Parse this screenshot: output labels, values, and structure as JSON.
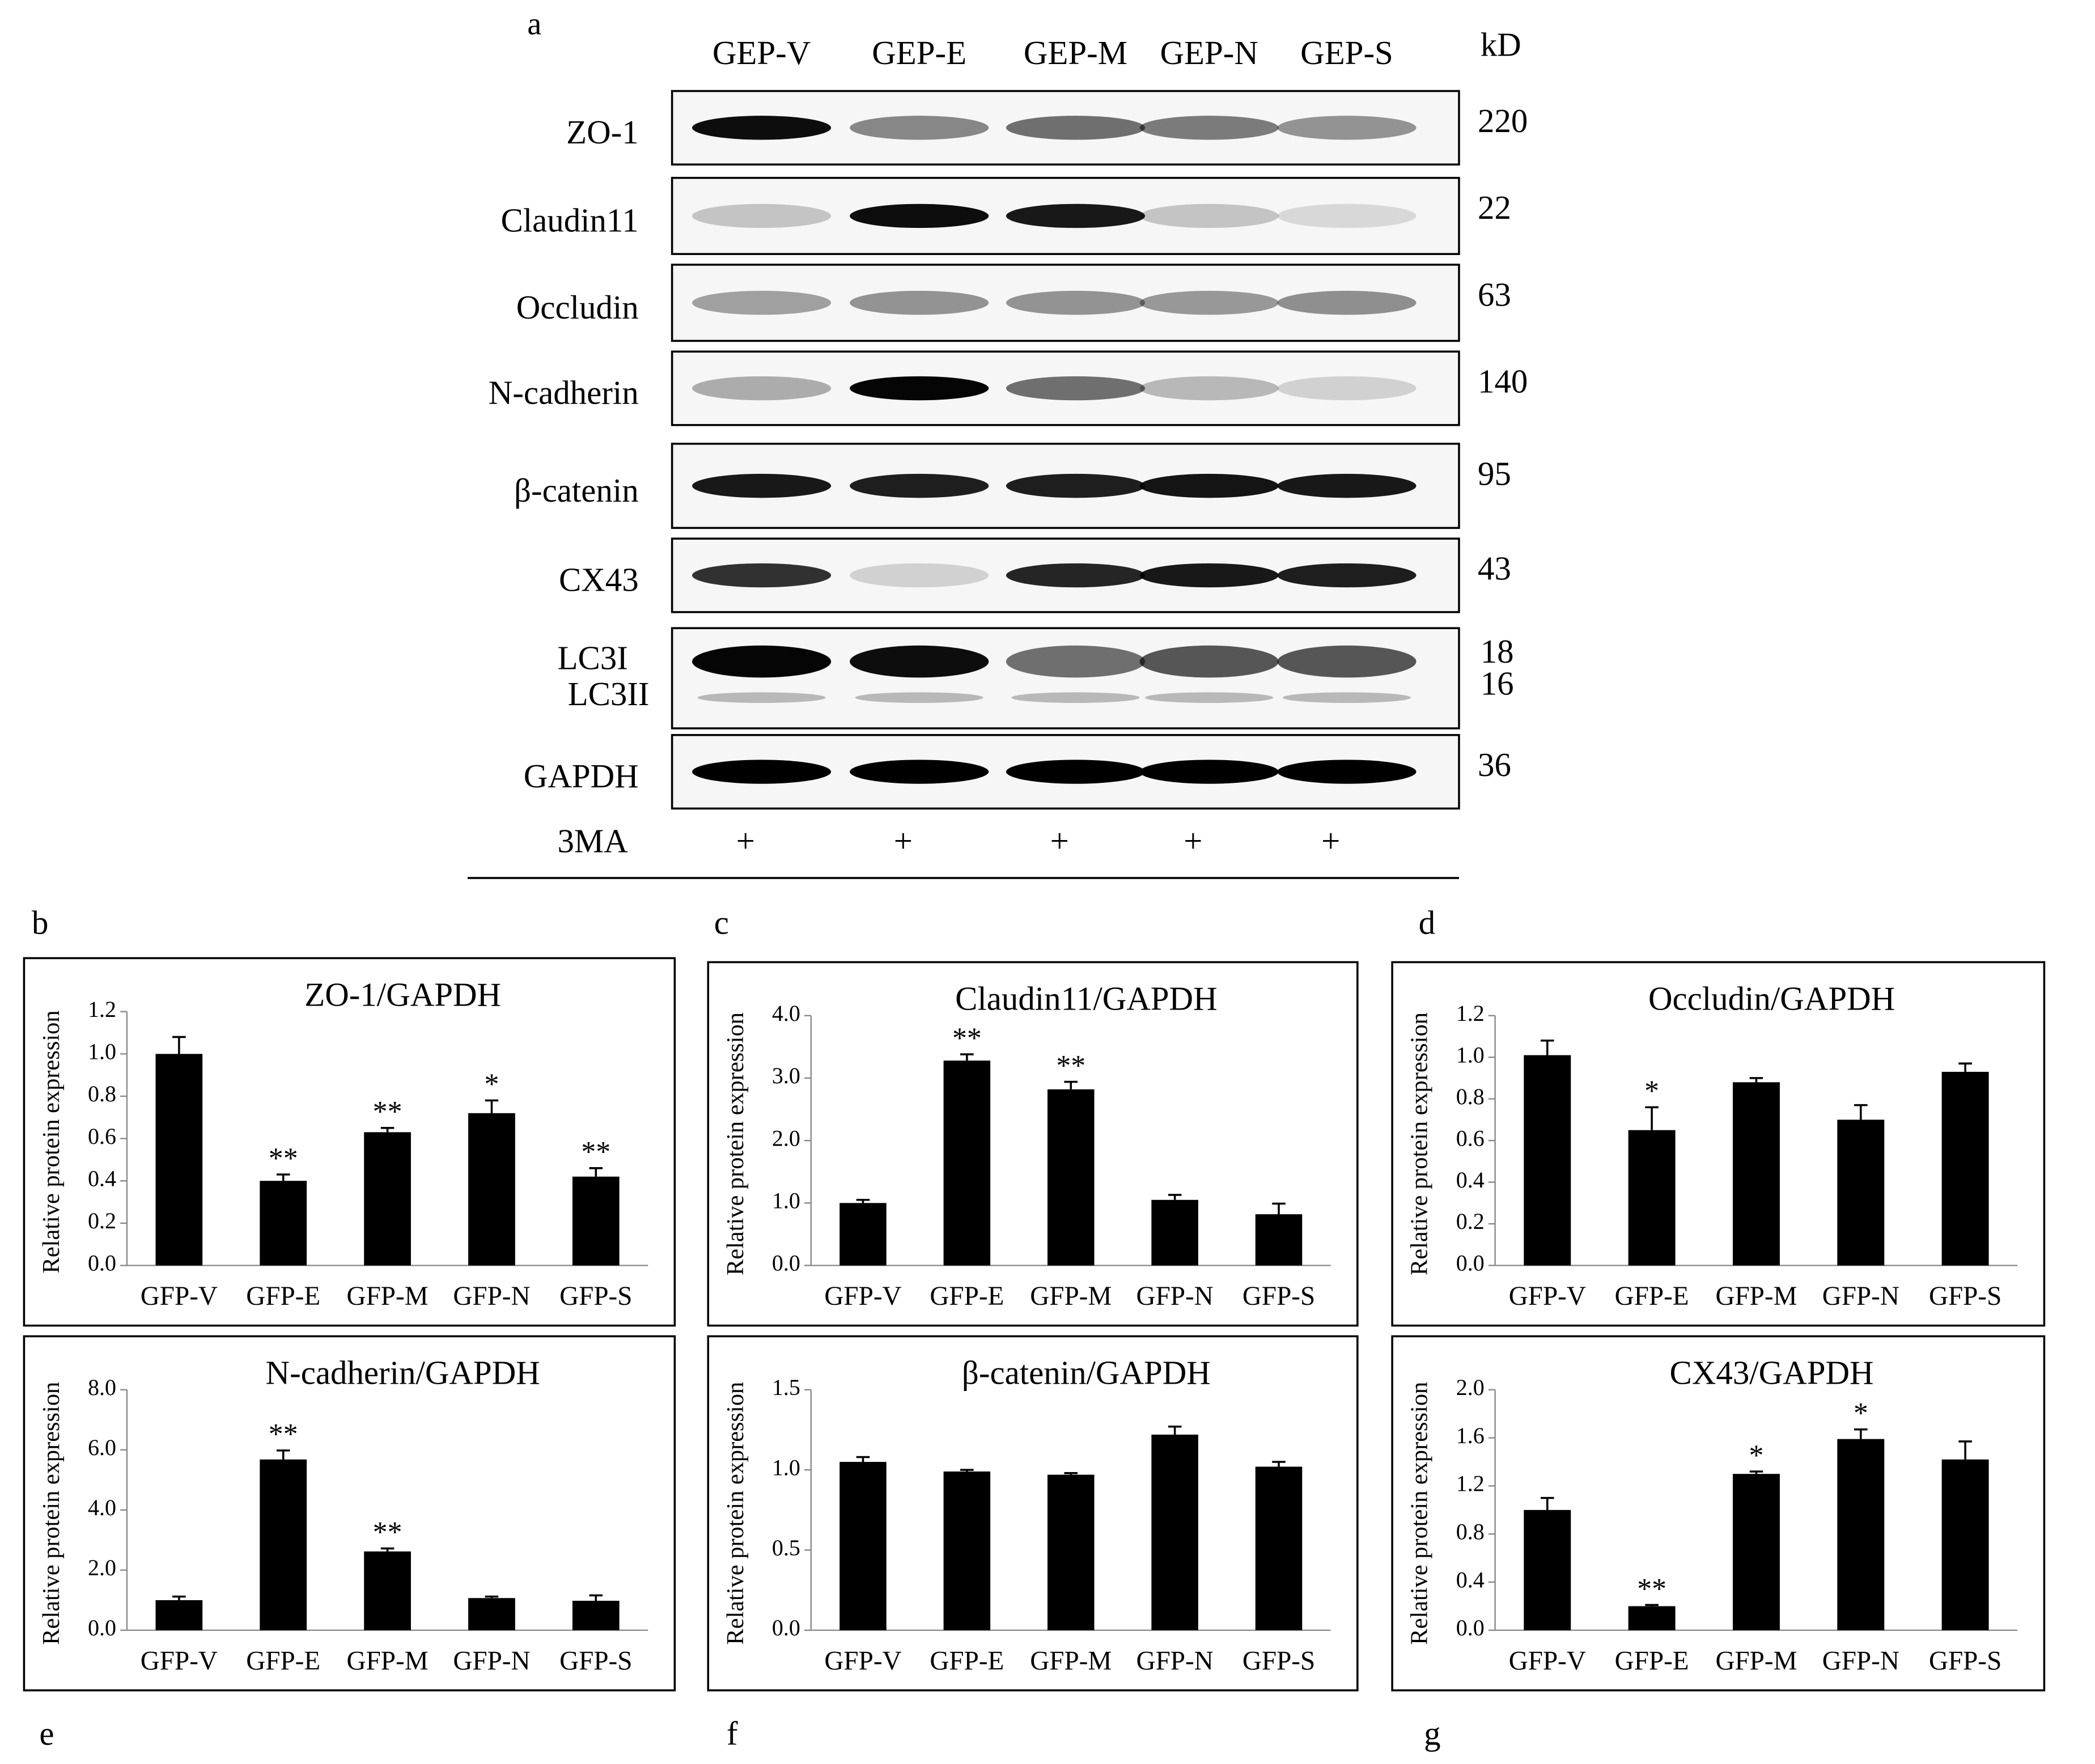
{
  "blot": {
    "lanes": [
      "GEP-V",
      "GEP-E",
      "GEP-M",
      "GEP-N",
      "GEP-S"
    ],
    "unit": "kD",
    "rows": [
      {
        "label": "ZO-1",
        "kd": "220"
      },
      {
        "label": "Claudin11",
        "kd": "22"
      },
      {
        "label": "Occludin",
        "kd": "63"
      },
      {
        "label": "N-cadherin",
        "kd": "140"
      },
      {
        "label": "β-catenin",
        "kd": "95"
      },
      {
        "label": "CX43",
        "kd": "43"
      },
      {
        "label": "LC3I",
        "kd": "18",
        "label2": "LC3II",
        "kd2": "16"
      },
      {
        "label": "GAPDH",
        "kd": "36"
      }
    ],
    "treatment": {
      "label": "3MA",
      "marks": [
        "+",
        "+",
        "+",
        "+",
        "+"
      ]
    },
    "panel": "a"
  },
  "chart_data": [
    {
      "type": "bar",
      "panel": "b",
      "title": "ZO-1/GAPDH",
      "ylabel": "Relative protein expression",
      "color": "#000000",
      "categories": [
        "GFP-V",
        "GFP-E",
        "GFP-M",
        "GFP-N",
        "GFP-S"
      ],
      "values": [
        1.0,
        0.4,
        0.63,
        0.72,
        0.42
      ],
      "errors": [
        0.08,
        0.03,
        0.02,
        0.06,
        0.04
      ],
      "annotations": [
        null,
        "**",
        "**",
        "*",
        "**"
      ],
      "ylim": [
        0,
        1.2
      ],
      "yticks": [
        {
          "value": 0,
          "label": "0.0"
        },
        0.2,
        0.4,
        0.6,
        0.8,
        {
          "value": 1,
          "label": "1.0"
        },
        1.2
      ]
    },
    {
      "type": "bar",
      "panel": "c",
      "title": "Claudin11/GAPDH",
      "ylabel": "Relative protein expression",
      "color": "#000000",
      "categories": [
        "GFP-V",
        "GFP-E",
        "GFP-M",
        "GFP-N",
        "GFP-S"
      ],
      "values": [
        1.0,
        3.28,
        2.82,
        1.05,
        0.82
      ],
      "errors": [
        0.05,
        0.1,
        0.12,
        0.08,
        0.17
      ],
      "annotations": [
        null,
        "**",
        "**",
        null,
        null
      ],
      "ylim": [
        0,
        4
      ],
      "yticks": [
        {
          "value": 0,
          "label": "0.0"
        },
        {
          "value": 1,
          "label": "1.0"
        },
        {
          "value": 2,
          "label": "2.0"
        },
        {
          "value": 3,
          "label": "3.0"
        },
        {
          "value": 4,
          "label": "4.0"
        }
      ]
    },
    {
      "type": "bar",
      "panel": "d",
      "title": "Occludin/GAPDH",
      "ylabel": "Relative protein expression",
      "color": "#000000",
      "categories": [
        "GFP-V",
        "GFP-E",
        "GFP-M",
        "GFP-N",
        "GFP-S"
      ],
      "values": [
        1.01,
        0.65,
        0.88,
        0.7,
        0.93
      ],
      "errors": [
        0.07,
        0.11,
        0.02,
        0.07,
        0.04
      ],
      "annotations": [
        null,
        "*",
        null,
        null,
        null
      ],
      "ylim": [
        0,
        1.2
      ],
      "yticks": [
        {
          "value": 0,
          "label": "0.0"
        },
        0.2,
        0.4,
        0.6,
        0.8,
        {
          "value": 1,
          "label": "1.0"
        },
        1.2
      ]
    },
    {
      "type": "bar",
      "panel": "e",
      "title": "N-cadherin/GAPDH",
      "ylabel": "Relative protein expression",
      "color": "#000000",
      "categories": [
        "GFP-V",
        "GFP-E",
        "GFP-M",
        "GFP-N",
        "GFP-S"
      ],
      "values": [
        1.0,
        5.68,
        2.62,
        1.07,
        0.98
      ],
      "errors": [
        0.12,
        0.3,
        0.1,
        0.05,
        0.18
      ],
      "annotations": [
        null,
        "**",
        "**",
        null,
        null
      ],
      "ylim": [
        0,
        8
      ],
      "yticks": [
        {
          "value": 0,
          "label": "0.0"
        },
        {
          "value": 2,
          "label": "2.0"
        },
        {
          "value": 4,
          "label": "4.0"
        },
        {
          "value": 6,
          "label": "6.0"
        },
        {
          "value": 8,
          "label": "8.0"
        }
      ]
    },
    {
      "type": "bar",
      "panel": "f",
      "title": "β-catenin/GAPDH",
      "ylabel": "Relative protein expression",
      "color": "#000000",
      "categories": [
        "GFP-V",
        "GFP-E",
        "GFP-M",
        "GFP-N",
        "GFP-S"
      ],
      "values": [
        1.05,
        0.99,
        0.97,
        1.22,
        1.02
      ],
      "errors": [
        0.03,
        0.01,
        0.01,
        0.05,
        0.03
      ],
      "ylim": [
        0,
        1.5
      ],
      "yticks": [
        {
          "value": 0,
          "label": "0.0"
        },
        0.5,
        {
          "value": 1,
          "label": "1.0"
        },
        1.5
      ]
    },
    {
      "type": "bar",
      "panel": "g",
      "title": "CX43/GAPDH",
      "ylabel": "Relative protein expression",
      "color": "#000000",
      "categories": [
        "GFP-V",
        "GFP-E",
        "GFP-M",
        "GFP-N",
        "GFP-S"
      ],
      "values": [
        1.0,
        0.2,
        1.3,
        1.59,
        1.42
      ],
      "errors": [
        0.1,
        0.01,
        0.02,
        0.08,
        0.15
      ],
      "annotations": [
        null,
        "**",
        "*",
        "*",
        null
      ],
      "ylim": [
        0,
        2
      ],
      "yticks": [
        {
          "value": 0,
          "label": "0.0"
        },
        0.4,
        0.8,
        1.2,
        1.6,
        {
          "value": 2,
          "label": "2.0"
        }
      ]
    }
  ]
}
